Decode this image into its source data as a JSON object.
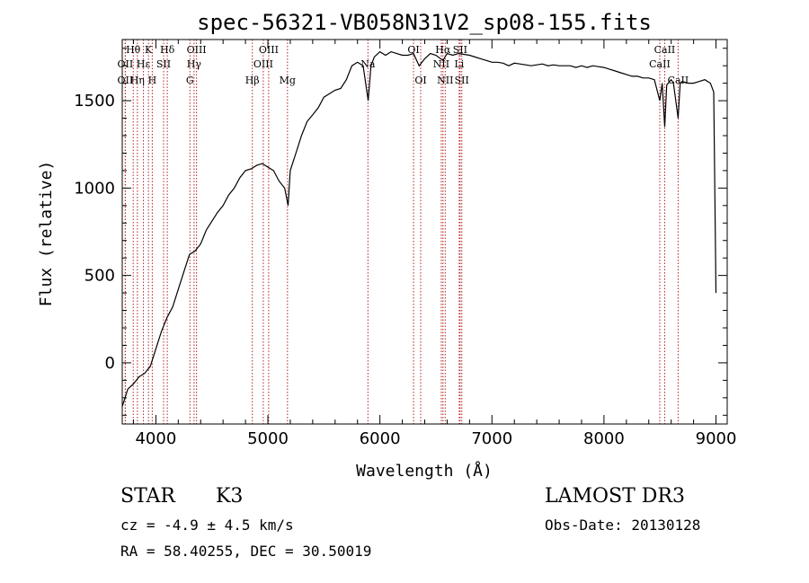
{
  "chart_data": {
    "type": "line",
    "title": "spec-56321-VB058N31V2_sp08-155.fits",
    "xlabel": "Wavelength (Å)",
    "ylabel": "Flux (relative)",
    "xlim": [
      3700,
      9100
    ],
    "ylim": [
      -350,
      1850
    ],
    "x_ticks": [
      4000,
      5000,
      6000,
      7000,
      8000,
      9000
    ],
    "y_ticks": [
      0,
      500,
      1000,
      1500
    ],
    "series": [
      {
        "name": "flux",
        "x": [
          3700,
          3750,
          3800,
          3850,
          3900,
          3950,
          4000,
          4050,
          4100,
          4150,
          4200,
          4250,
          4300,
          4350,
          4400,
          4450,
          4500,
          4550,
          4600,
          4650,
          4700,
          4750,
          4800,
          4850,
          4900,
          4950,
          5000,
          5050,
          5100,
          5150,
          5180,
          5200,
          5250,
          5300,
          5350,
          5400,
          5450,
          5500,
          5550,
          5600,
          5650,
          5700,
          5750,
          5800,
          5850,
          5895,
          5920,
          5950,
          6000,
          6050,
          6100,
          6150,
          6200,
          6250,
          6300,
          6350,
          6400,
          6450,
          6500,
          6563,
          6600,
          6650,
          6700,
          6750,
          6800,
          6850,
          6900,
          6950,
          7000,
          7050,
          7100,
          7150,
          7200,
          7250,
          7300,
          7350,
          7400,
          7450,
          7500,
          7550,
          7600,
          7650,
          7700,
          7750,
          7800,
          7850,
          7900,
          7950,
          8000,
          8050,
          8100,
          8150,
          8200,
          8250,
          8300,
          8350,
          8400,
          8450,
          8498,
          8520,
          8542,
          8560,
          8600,
          8620,
          8662,
          8680,
          8700,
          8750,
          8800,
          8850,
          8900,
          8950,
          8980,
          9000
        ],
        "y": [
          -250,
          -150,
          -120,
          -80,
          -60,
          -20,
          80,
          180,
          260,
          320,
          420,
          520,
          620,
          640,
          680,
          760,
          810,
          860,
          900,
          960,
          1000,
          1060,
          1100,
          1110,
          1130,
          1140,
          1120,
          1100,
          1040,
          1000,
          900,
          1100,
          1200,
          1300,
          1380,
          1420,
          1460,
          1520,
          1540,
          1560,
          1570,
          1620,
          1700,
          1720,
          1700,
          1500,
          1700,
          1750,
          1780,
          1760,
          1780,
          1770,
          1760,
          1760,
          1770,
          1700,
          1740,
          1770,
          1760,
          1730,
          1770,
          1760,
          1770,
          1765,
          1760,
          1750,
          1740,
          1730,
          1720,
          1720,
          1715,
          1700,
          1715,
          1710,
          1705,
          1700,
          1705,
          1710,
          1700,
          1705,
          1700,
          1700,
          1700,
          1690,
          1700,
          1690,
          1700,
          1695,
          1690,
          1680,
          1670,
          1660,
          1650,
          1640,
          1640,
          1630,
          1630,
          1620,
          1500,
          1600,
          1350,
          1590,
          1620,
          1600,
          1400,
          1600,
          1610,
          1600,
          1600,
          1610,
          1620,
          1600,
          1550,
          400
        ]
      }
    ],
    "lines": [
      {
        "label": "Hθ",
        "wavelength": 3798,
        "row": 1
      },
      {
        "label": "OII",
        "wavelength": 3727,
        "row": 2
      },
      {
        "label": "OII",
        "wavelength": 3727,
        "row": 3
      },
      {
        "label": "Hε",
        "wavelength": 3889,
        "row": 2
      },
      {
        "label": "Hη",
        "wavelength": 3835,
        "row": 3
      },
      {
        "label": "K",
        "wavelength": 3934,
        "row": 1
      },
      {
        "label": "SII",
        "wavelength": 4069,
        "row": 2
      },
      {
        "label": "H",
        "wavelength": 3968,
        "row": 3
      },
      {
        "label": "Hδ",
        "wavelength": 4102,
        "row": 1
      },
      {
        "label": "OIII",
        "wavelength": 4363,
        "row": 1
      },
      {
        "label": "Hγ",
        "wavelength": 4341,
        "row": 2
      },
      {
        "label": "G",
        "wavelength": 4304,
        "row": 3
      },
      {
        "label": "Hβ",
        "wavelength": 4861,
        "row": 3
      },
      {
        "label": "OIII",
        "wavelength": 5007,
        "row": 1
      },
      {
        "label": "OIII",
        "wavelength": 4959,
        "row": 2
      },
      {
        "label": "Mg",
        "wavelength": 5175,
        "row": 3
      },
      {
        "label": "Na",
        "wavelength": 5893,
        "row": 2
      },
      {
        "label": "OI",
        "wavelength": 6300,
        "row": 1
      },
      {
        "label": "OI",
        "wavelength": 6364,
        "row": 3
      },
      {
        "label": "Hα",
        "wavelength": 6563,
        "row": 1
      },
      {
        "label": "NII",
        "wavelength": 6548,
        "row": 2
      },
      {
        "label": "NII",
        "wavelength": 6583,
        "row": 3
      },
      {
        "label": "SII",
        "wavelength": 6716,
        "row": 1
      },
      {
        "label": "Li",
        "wavelength": 6708,
        "row": 2
      },
      {
        "label": "SII",
        "wavelength": 6731,
        "row": 3
      },
      {
        "label": "CaII",
        "wavelength": 8542,
        "row": 1
      },
      {
        "label": "CaII",
        "wavelength": 8498,
        "row": 2
      },
      {
        "label": "CaII",
        "wavelength": 8662,
        "row": 3
      }
    ]
  },
  "info": {
    "object_class": "STAR",
    "subclass": "K3",
    "survey": "LAMOST DR3",
    "redshift": "cz = -4.9 ± 4.5 km/s",
    "obs_date": "Obs-Date: 20130128",
    "coords": "RA =  58.40255, DEC =  30.50019"
  },
  "colors": {
    "spectrum": "#000000",
    "line_marker": "#b22222"
  }
}
